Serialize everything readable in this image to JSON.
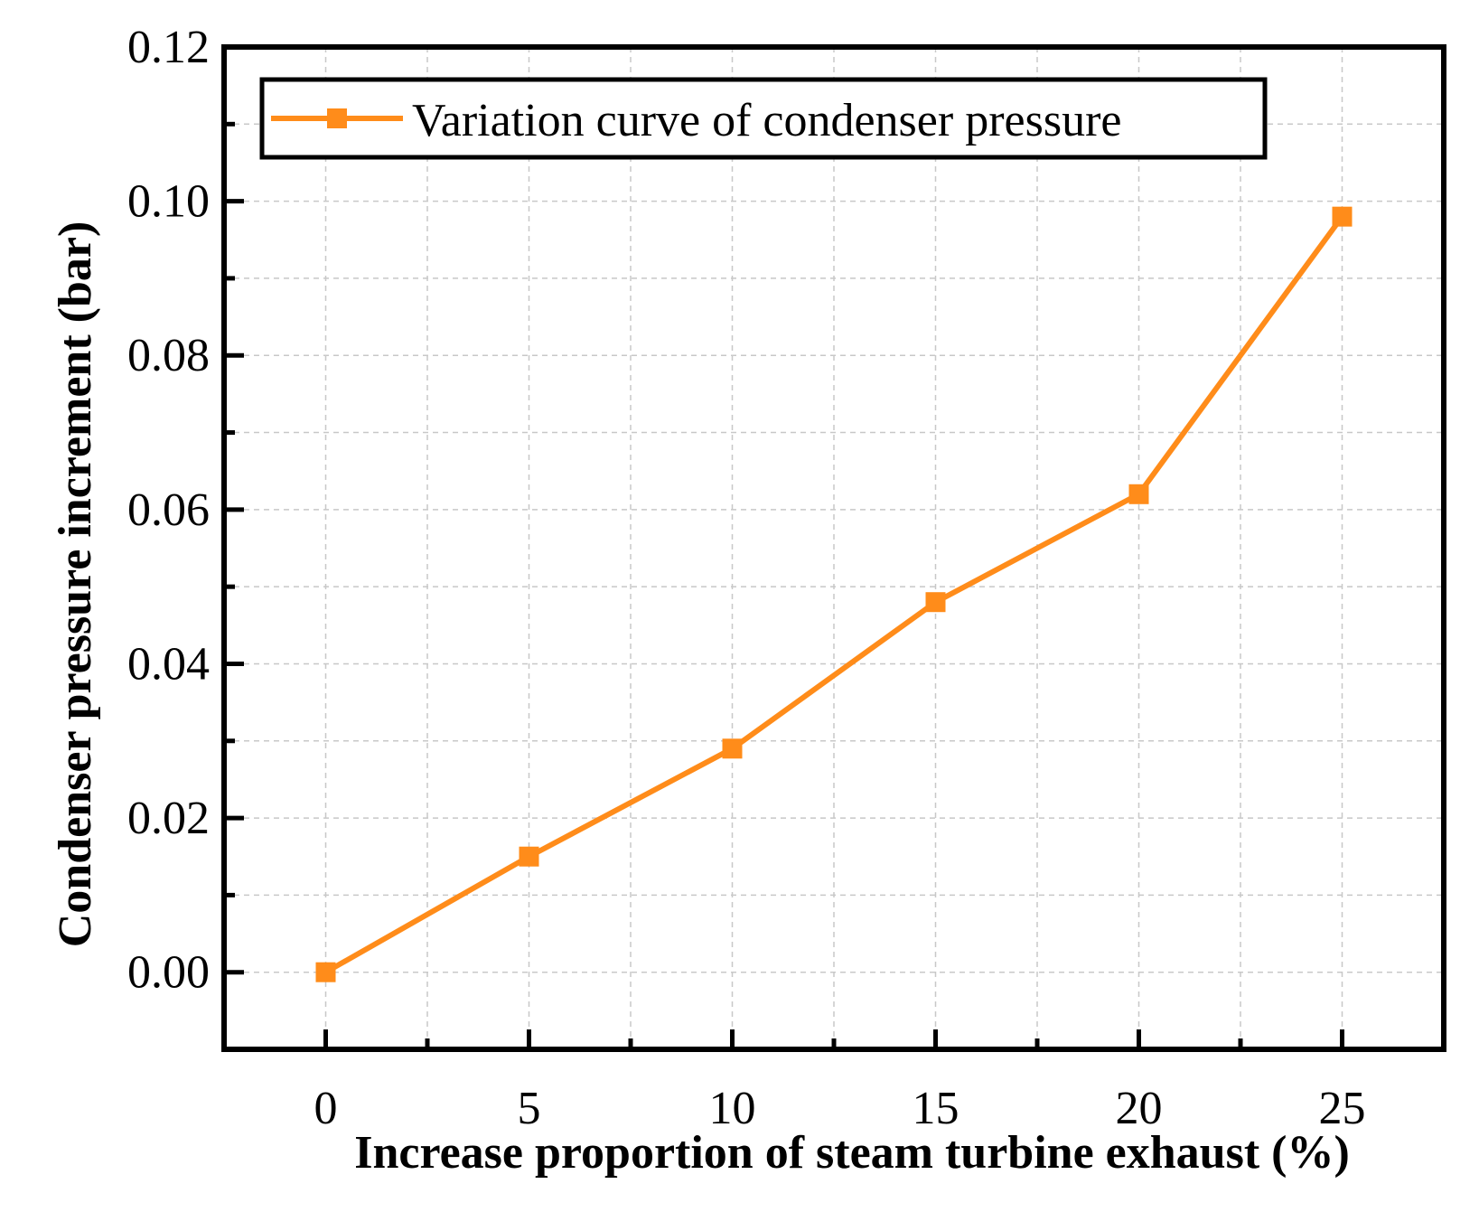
{
  "chart_data": {
    "type": "line",
    "title": "",
    "xlabel": "Increase proportion of steam turbine exhaust (%)",
    "ylabel": "Condenser pressure increment (bar)",
    "xlim": [
      -2.5,
      27.5
    ],
    "ylim": [
      -0.01,
      0.12
    ],
    "x_ticks": [
      0,
      5,
      10,
      15,
      20,
      25
    ],
    "x_tick_labels": [
      "0",
      "5",
      "10",
      "15",
      "20",
      "25"
    ],
    "y_ticks": [
      0.0,
      0.02,
      0.04,
      0.06,
      0.08,
      0.1,
      0.12
    ],
    "y_tick_labels": [
      "0.00",
      "0.02",
      "0.04",
      "0.06",
      "0.08",
      "0.10",
      "0.12"
    ],
    "grid": true,
    "legend_position": "top-left",
    "series": [
      {
        "name": "Variation curve of condenser pressure",
        "color": "#ff8c1a",
        "marker": "square",
        "x": [
          0,
          5,
          10,
          15,
          20,
          25
        ],
        "values": [
          0.0,
          0.015,
          0.029,
          0.048,
          0.062,
          0.098
        ]
      }
    ]
  }
}
